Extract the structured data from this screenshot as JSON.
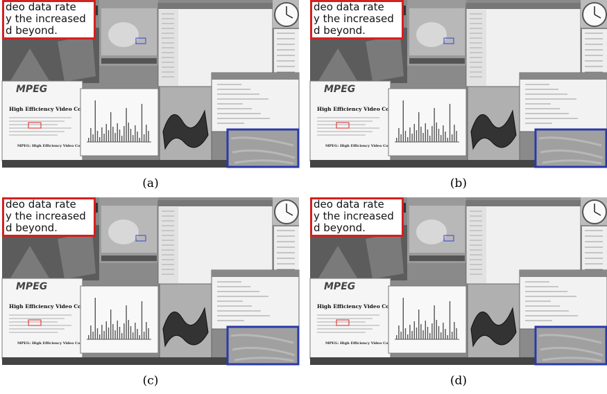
{
  "panels": [
    {
      "caption": "(a)",
      "zoom_text": [
        "deo data rate",
        "y the increased",
        "d beyond."
      ],
      "logo": "MPEG",
      "heading": "High Efficiency Video Coding",
      "subheading": "MPEG: High Efficiency Video Coding (HEVC)"
    },
    {
      "caption": "(b)",
      "zoom_text": [
        "deo data rate",
        "y the increased",
        "d beyond."
      ],
      "logo": "MPEG",
      "heading": "High Efficiency Video Coding",
      "subheading": "MPEG: High Efficiency Video Coding (HEVC)"
    },
    {
      "caption": "(c)",
      "zoom_text": [
        "deo data rate",
        "y the increased",
        "d beyond."
      ],
      "logo": "MPEG",
      "heading": "High Efficiency Video Coding",
      "subheading": "MPEG: High Efficiency Video Coding (HEVC)"
    },
    {
      "caption": "(d)",
      "zoom_text": [
        "deo data rate",
        "y the increased",
        "d beyond."
      ],
      "logo": "MPEG",
      "heading": "High Efficiency Video Coding",
      "subheading": "MPEG: High Efficiency Video Coding (HEVC)"
    }
  ]
}
